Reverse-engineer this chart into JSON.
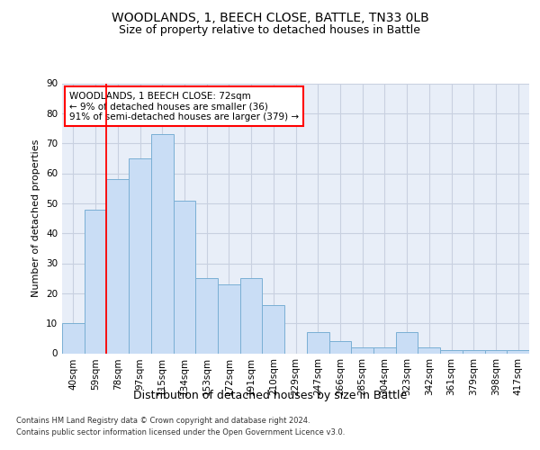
{
  "title": "WOODLANDS, 1, BEECH CLOSE, BATTLE, TN33 0LB",
  "subtitle": "Size of property relative to detached houses in Battle",
  "xlabel": "Distribution of detached houses by size in Battle",
  "ylabel": "Number of detached properties",
  "categories": [
    "40sqm",
    "59sqm",
    "78sqm",
    "97sqm",
    "115sqm",
    "134sqm",
    "153sqm",
    "172sqm",
    "191sqm",
    "210sqm",
    "229sqm",
    "247sqm",
    "266sqm",
    "285sqm",
    "304sqm",
    "323sqm",
    "342sqm",
    "361sqm",
    "379sqm",
    "398sqm",
    "417sqm"
  ],
  "values": [
    10,
    48,
    58,
    65,
    73,
    51,
    25,
    23,
    25,
    16,
    0,
    7,
    4,
    2,
    2,
    7,
    2,
    1,
    1,
    1,
    1
  ],
  "bar_color": "#c9ddf5",
  "bar_edge_color": "#7aafd4",
  "red_line_x": 1.5,
  "annotation_text": "WOODLANDS, 1 BEECH CLOSE: 72sqm\n← 9% of detached houses are smaller (36)\n91% of semi-detached houses are larger (379) →",
  "annotation_box_color": "white",
  "annotation_box_edge": "red",
  "ylim": [
    0,
    90
  ],
  "yticks": [
    0,
    10,
    20,
    30,
    40,
    50,
    60,
    70,
    80,
    90
  ],
  "title_fontsize": 10,
  "subtitle_fontsize": 9,
  "xlabel_fontsize": 9,
  "ylabel_fontsize": 8,
  "tick_fontsize": 7.5,
  "annotation_fontsize": 7.5,
  "footer_line1": "Contains HM Land Registry data © Crown copyright and database right 2024.",
  "footer_line2": "Contains public sector information licensed under the Open Government Licence v3.0.",
  "footer_fontsize": 6.0,
  "background_color": "#e8eef8",
  "grid_color": "#c8d0e0"
}
